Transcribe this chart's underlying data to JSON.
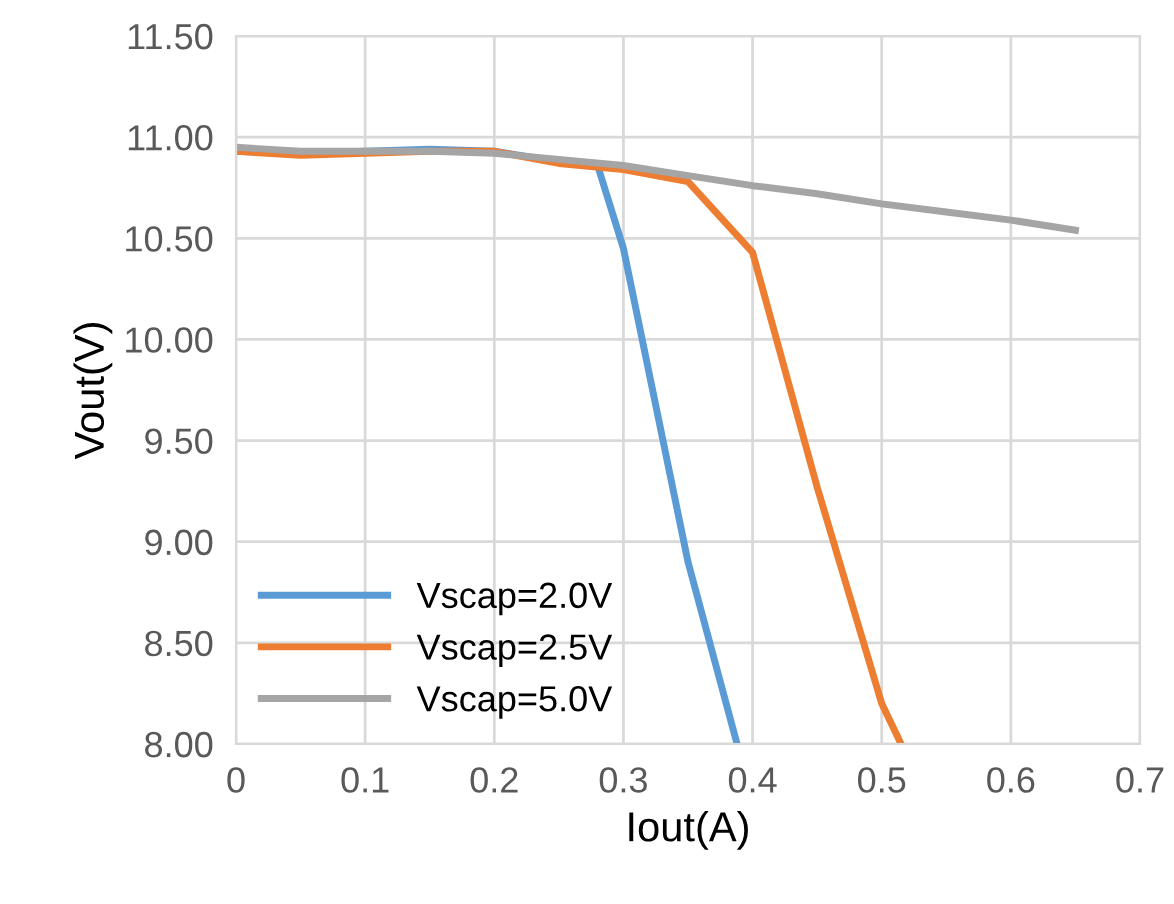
{
  "chart_data": {
    "type": "line",
    "xlabel": "Iout(A)",
    "ylabel": "Vout(V)",
    "xlim": [
      0,
      0.7
    ],
    "xticks": [
      0,
      0.1,
      0.2,
      0.3,
      0.4,
      0.5,
      0.6,
      0.7
    ],
    "ylim": [
      8,
      11.5
    ],
    "yticks": [
      {
        "value": 8,
        "label": "8.00"
      },
      {
        "value": 8.5,
        "label": "8.50"
      },
      {
        "value": 9,
        "label": "9.00"
      },
      {
        "value": 9.5,
        "label": "9.50"
      },
      {
        "value": 10,
        "label": "10.00"
      },
      {
        "value": 10.5,
        "label": "10.50"
      },
      {
        "value": 11,
        "label": "11.00"
      },
      {
        "value": 11.5,
        "label": "11.50"
      }
    ],
    "grid": true,
    "legend": "bottom left",
    "marker": "none",
    "line_style": "solid",
    "series": [
      {
        "name": "Vscap=2.0V",
        "color": "#5b9bd5",
        "x": [
          0,
          0.05,
          0.1,
          0.15,
          0.2,
          0.25,
          0.28,
          0.3,
          0.35,
          0.388
        ],
        "values": [
          10.93,
          10.92,
          10.93,
          10.94,
          10.93,
          10.88,
          10.86,
          10.45,
          8.9,
          8.0
        ]
      },
      {
        "name": "Vscap=2.5V",
        "color": "#ed7d31",
        "x": [
          0,
          0.05,
          0.1,
          0.15,
          0.2,
          0.25,
          0.3,
          0.35,
          0.4,
          0.45,
          0.5,
          0.515
        ],
        "values": [
          10.93,
          10.91,
          10.92,
          10.93,
          10.93,
          10.87,
          10.84,
          10.78,
          10.43,
          9.27,
          8.2,
          8.0
        ]
      },
      {
        "name": "Vscap=5.0V",
        "color": "#a5a5a5",
        "x": [
          0,
          0.05,
          0.1,
          0.15,
          0.2,
          0.25,
          0.3,
          0.35,
          0.4,
          0.45,
          0.5,
          0.55,
          0.6,
          0.65
        ],
        "values": [
          10.95,
          10.93,
          10.93,
          10.93,
          10.92,
          10.89,
          10.86,
          10.81,
          10.76,
          10.72,
          10.67,
          10.63,
          10.59,
          10.54
        ]
      }
    ]
  }
}
